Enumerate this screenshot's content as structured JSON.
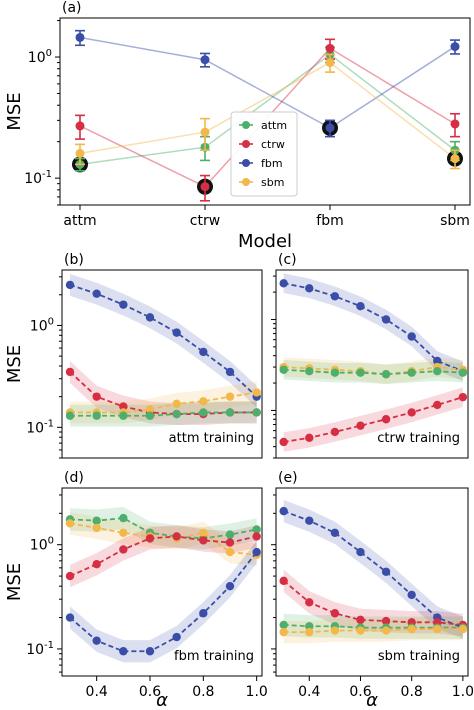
{
  "colors": {
    "attm": "#4daf6a",
    "ctrw": "#d62f44",
    "fbm": "#3a4ea8",
    "sbm": "#f2b84b"
  },
  "chart_data": [
    {
      "panel_label": "(a)",
      "type": "line",
      "xlabel": "Model",
      "ylabel": "MSE",
      "ylim": [
        0.06,
        2.1
      ],
      "yscale": "log",
      "categories": [
        "attm",
        "ctrw",
        "fbm",
        "sbm"
      ],
      "yticks": [
        {
          "v": 1,
          "label": "10^0"
        },
        {
          "v": 0.1,
          "label": "10^-1"
        }
      ],
      "legend": "center",
      "series": [
        {
          "name": "attm",
          "key": "attm",
          "values": [
            0.13,
            0.18,
            1.05,
            0.17
          ],
          "err": [
            0.015,
            0.04,
            0.15,
            0.03
          ]
        },
        {
          "name": "ctrw",
          "key": "ctrw",
          "values": [
            0.27,
            0.085,
            1.18,
            0.28
          ],
          "err": [
            0.06,
            0.02,
            0.22,
            0.06
          ]
        },
        {
          "name": "fbm",
          "key": "fbm",
          "values": [
            1.45,
            0.95,
            0.26,
            1.22
          ],
          "err": [
            0.2,
            0.12,
            0.04,
            0.16
          ]
        },
        {
          "name": "sbm",
          "key": "sbm",
          "values": [
            0.16,
            0.24,
            0.9,
            0.145
          ],
          "err": [
            0.03,
            0.07,
            0.15,
            0.025
          ]
        }
      ],
      "highlight": [
        {
          "cat": 0,
          "v": 0.13
        },
        {
          "cat": 1,
          "v": 0.085
        },
        {
          "cat": 2,
          "v": 0.26
        },
        {
          "cat": 3,
          "v": 0.145
        }
      ]
    },
    {
      "panel_label": "(b)",
      "type": "line",
      "annotation": "attm training",
      "ylabel": "MSE",
      "xlabel": "",
      "yscale": "log",
      "ylim": [
        0.05,
        3.5
      ],
      "xlim": [
        0.27,
        1.02
      ],
      "yticks": [
        {
          "v": 1,
          "label": "10^0"
        },
        {
          "v": 0.1,
          "label": "10^-1"
        }
      ],
      "x": [
        0.3,
        0.4,
        0.5,
        0.6,
        0.7,
        0.8,
        0.9,
        1.0
      ],
      "series": [
        {
          "key": "fbm",
          "values": [
            2.5,
            2.05,
            1.6,
            1.2,
            0.85,
            0.55,
            0.35,
            0.2
          ]
        },
        {
          "key": "ctrw",
          "values": [
            0.35,
            0.2,
            0.16,
            0.14,
            0.135,
            0.135,
            0.14,
            0.14
          ]
        },
        {
          "key": "sbm",
          "values": [
            0.14,
            0.14,
            0.14,
            0.15,
            0.17,
            0.18,
            0.2,
            0.22
          ]
        },
        {
          "key": "attm",
          "values": [
            0.13,
            0.13,
            0.13,
            0.13,
            0.135,
            0.14,
            0.14,
            0.14
          ]
        }
      ]
    },
    {
      "panel_label": "(c)",
      "type": "line",
      "annotation": "ctrw training",
      "ylabel": "",
      "xlabel": "",
      "yscale": "log",
      "ylim": [
        0.03,
        3.5
      ],
      "xlim": [
        0.27,
        1.02
      ],
      "x": [
        0.3,
        0.4,
        0.5,
        0.6,
        0.7,
        0.8,
        0.9,
        1.0
      ],
      "series": [
        {
          "key": "fbm",
          "values": [
            2.5,
            2.2,
            1.8,
            1.4,
            1.0,
            0.65,
            0.35,
            0.27
          ]
        },
        {
          "key": "sbm",
          "values": [
            0.3,
            0.29,
            0.28,
            0.27,
            0.25,
            0.27,
            0.3,
            0.28
          ]
        },
        {
          "key": "attm",
          "values": [
            0.28,
            0.27,
            0.26,
            0.26,
            0.25,
            0.26,
            0.27,
            0.26
          ]
        },
        {
          "key": "ctrw",
          "values": [
            0.045,
            0.05,
            0.058,
            0.068,
            0.08,
            0.095,
            0.115,
            0.14
          ]
        }
      ]
    },
    {
      "panel_label": "(d)",
      "type": "line",
      "annotation": "fbm training",
      "ylabel": "MSE",
      "xlabel": "α",
      "yscale": "log",
      "ylim": [
        0.055,
        3.5
      ],
      "xlim": [
        0.27,
        1.02
      ],
      "yticks": [
        {
          "v": 1,
          "label": "10^0"
        },
        {
          "v": 0.1,
          "label": "10^-1"
        }
      ],
      "xticks": [
        0.4,
        0.6,
        0.8,
        1.0
      ],
      "x": [
        0.3,
        0.4,
        0.5,
        0.6,
        0.7,
        0.8,
        0.9,
        1.0
      ],
      "series": [
        {
          "key": "attm",
          "values": [
            1.75,
            1.7,
            1.8,
            1.3,
            1.2,
            1.15,
            1.25,
            1.4
          ]
        },
        {
          "key": "sbm",
          "values": [
            1.6,
            1.45,
            1.3,
            1.2,
            1.15,
            1.3,
            0.85,
            0.8
          ]
        },
        {
          "key": "ctrw",
          "values": [
            0.5,
            0.65,
            0.9,
            1.15,
            1.2,
            1.1,
            1.05,
            1.2
          ]
        },
        {
          "key": "fbm",
          "values": [
            0.2,
            0.12,
            0.095,
            0.095,
            0.13,
            0.22,
            0.4,
            0.85
          ]
        }
      ]
    },
    {
      "panel_label": "(e)",
      "type": "line",
      "annotation": "sbm training",
      "ylabel": "",
      "xlabel": "α",
      "yscale": "log",
      "ylim": [
        0.055,
        3.5
      ],
      "xlim": [
        0.27,
        1.02
      ],
      "xticks": [
        0.4,
        0.6,
        0.8,
        1.0
      ],
      "x": [
        0.3,
        0.4,
        0.5,
        0.6,
        0.7,
        0.8,
        0.9,
        1.0
      ],
      "series": [
        {
          "key": "fbm",
          "values": [
            2.1,
            1.7,
            1.3,
            0.85,
            0.55,
            0.33,
            0.2,
            0.16
          ]
        },
        {
          "key": "ctrw",
          "values": [
            0.45,
            0.28,
            0.22,
            0.19,
            0.185,
            0.18,
            0.18,
            0.17
          ]
        },
        {
          "key": "attm",
          "values": [
            0.17,
            0.165,
            0.165,
            0.16,
            0.16,
            0.16,
            0.16,
            0.16
          ]
        },
        {
          "key": "sbm",
          "values": [
            0.145,
            0.145,
            0.15,
            0.15,
            0.15,
            0.155,
            0.155,
            0.155
          ]
        }
      ]
    }
  ]
}
